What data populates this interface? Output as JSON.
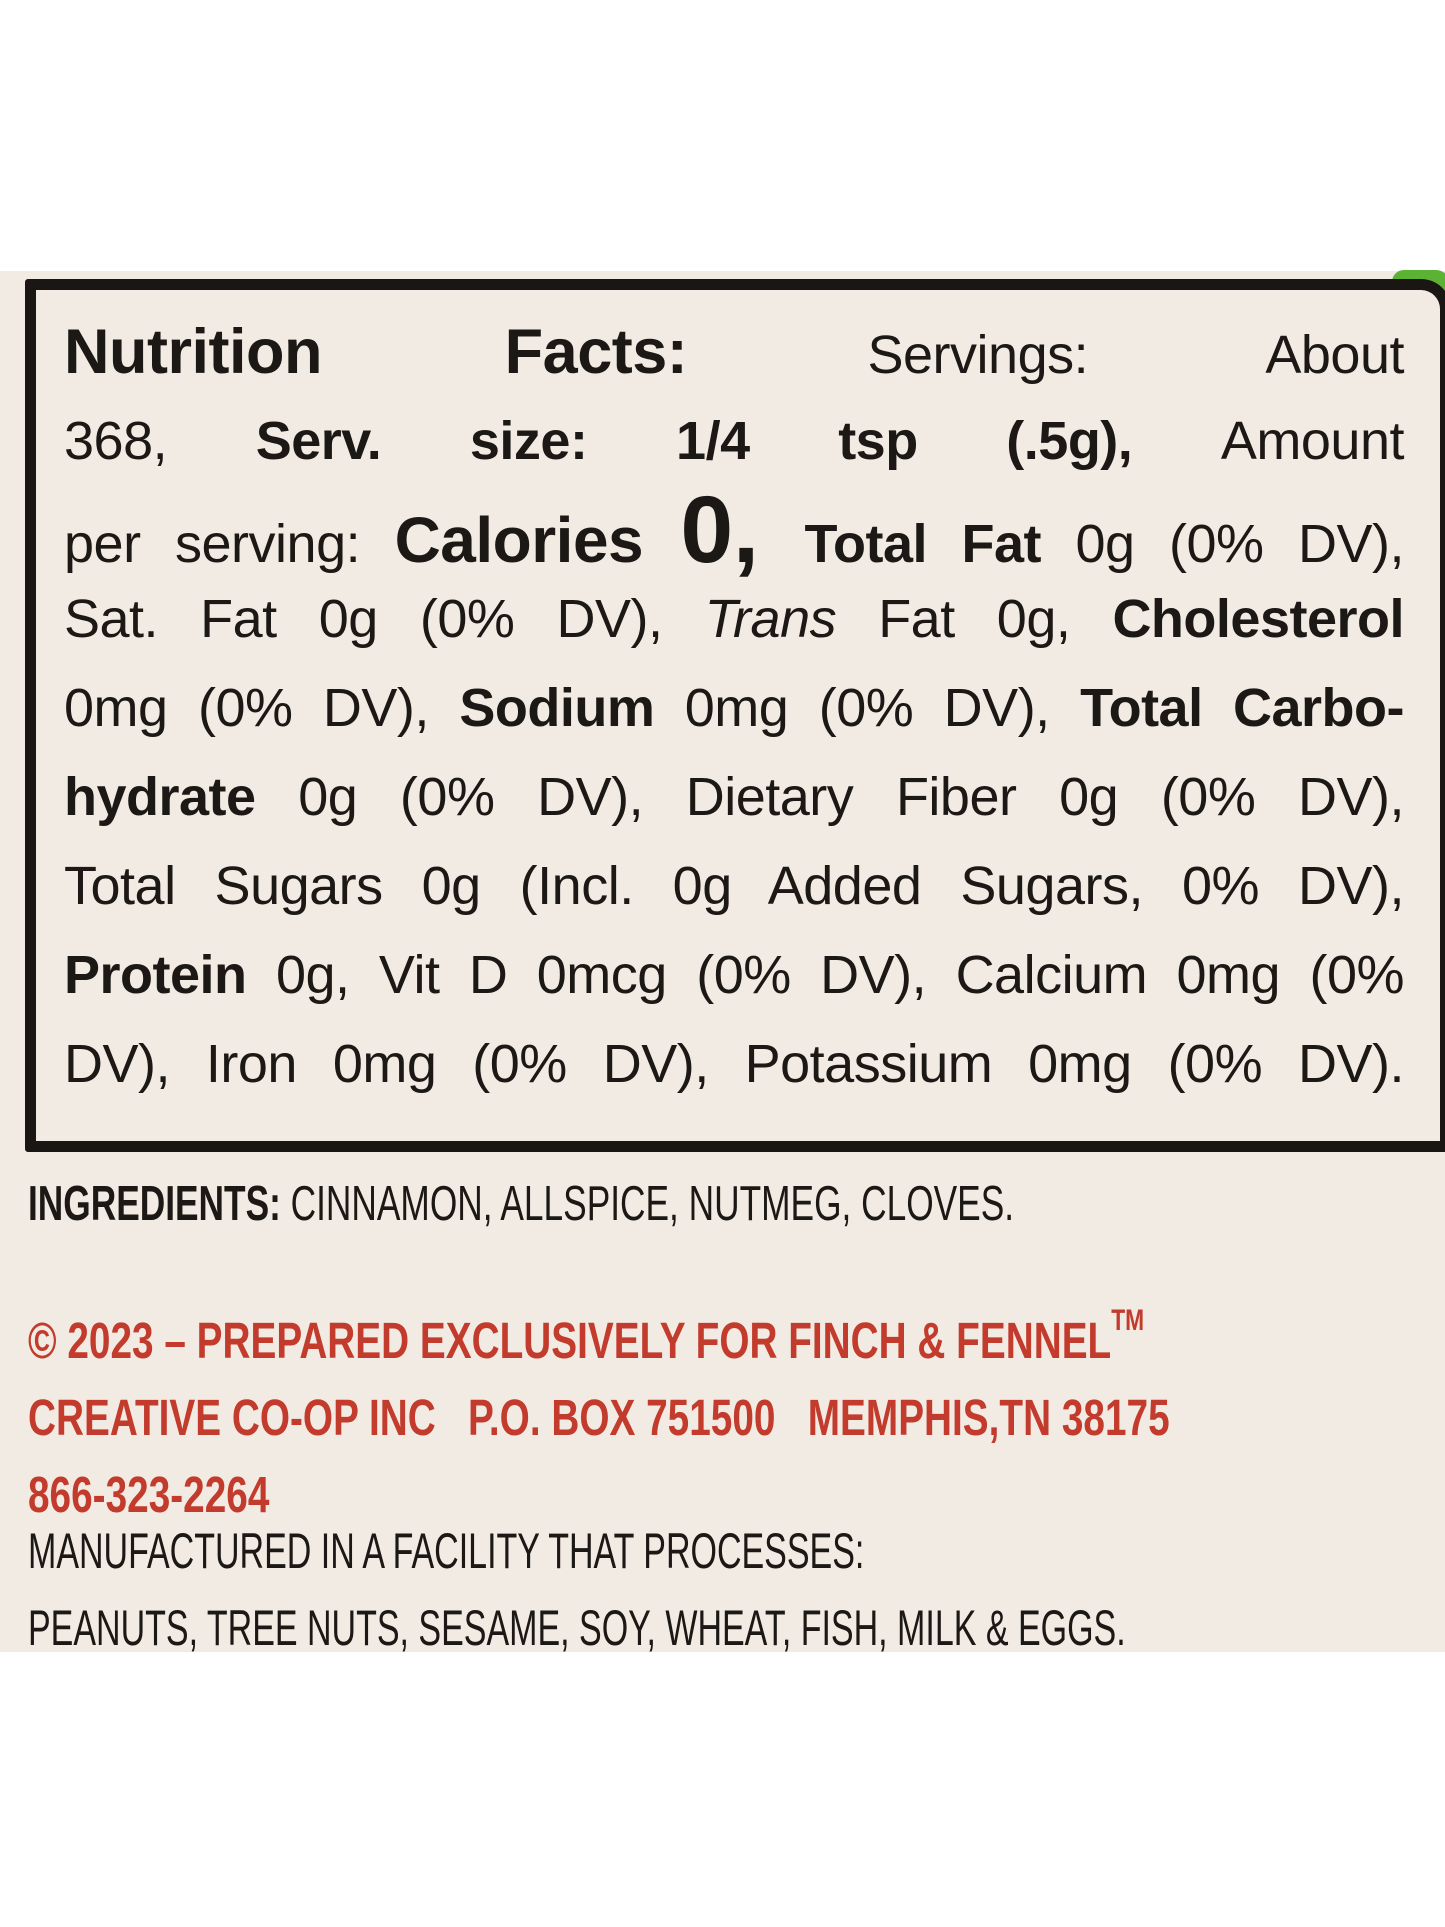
{
  "colors": {
    "background_cream": "#f1ebe3",
    "border_black": "#1a1614",
    "copyright_red": "#c23b2c",
    "accent_green": "#5cb233",
    "page_white": "#ffffff"
  },
  "nutrition_box": {
    "lines": [
      {
        "segs": [
          {
            "t": "Nutrition Facts:"
          },
          {
            "t": " Servings: About"
          }
        ]
      },
      {
        "segs": [
          {
            "t": "368, "
          },
          {
            "t": "Serv. size: 1/4 tsp (.5g), "
          },
          {
            "t": "Amount"
          }
        ]
      },
      {
        "segs": [
          {
            "t": "per serving: "
          },
          {
            "t": "Calories "
          },
          {
            "t": "0, "
          },
          {
            "t": "Total Fat "
          },
          {
            "t": "0g (0% DV),"
          }
        ]
      },
      {
        "segs": [
          {
            "t": "Sat. Fat 0g (0% DV), "
          },
          {
            "t": "Trans"
          },
          {
            "t": " Fat 0g, "
          },
          {
            "t": "Cholesterol"
          }
        ]
      },
      {
        "segs": [
          {
            "t": "0mg (0% DV), "
          },
          {
            "t": "Sodium"
          },
          {
            "t": " 0mg (0% DV), "
          },
          {
            "t": "Total Carbo-"
          }
        ]
      },
      {
        "segs": [
          {
            "t": "hydrate "
          },
          {
            "t": "0g (0% DV), Dietary Fiber 0g (0% DV),"
          }
        ]
      },
      {
        "segs": [
          {
            "t": "Total Sugars 0g (Incl. 0g Added Sugars, 0% DV),"
          }
        ]
      },
      {
        "segs": [
          {
            "t": "Protein "
          },
          {
            "t": "0g, Vit D 0mcg (0% DV), Calcium 0mg (0%"
          }
        ]
      },
      {
        "segs": [
          {
            "t": "DV), Iron 0mg (0% DV), Potassium 0mg (0% DV)."
          }
        ]
      }
    ]
  },
  "ingredients": {
    "label": "INGREDIENTS:",
    "text": " CINNAMON, ALLSPICE, NUTMEG, CLOVES."
  },
  "copyright": {
    "line1": "© 2023 – PREPARED EXCLUSIVELY FOR FINCH & FENNEL",
    "trademark": "TM",
    "line2": "CREATIVE CO-OP INC   P.O. BOX 751500   MEMPHIS,TN 38175",
    "line3": "866-323-2264"
  },
  "allergen": {
    "line1": "MANUFACTURED IN A FACILITY THAT PROCESSES:",
    "line2": "PEANUTS, TREE NUTS, SESAME, SOY, WHEAT, FISH, MILK & EGGS."
  }
}
